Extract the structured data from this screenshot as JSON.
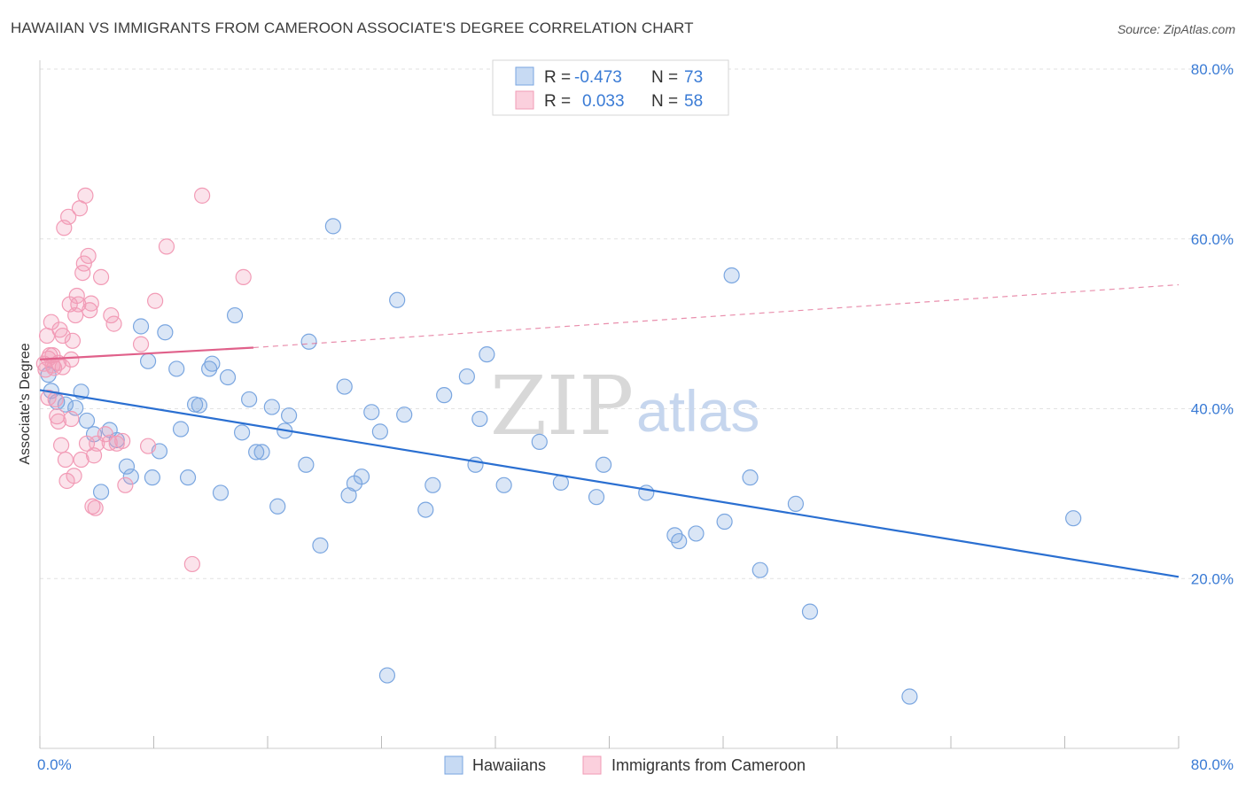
{
  "title": "HAWAIIAN VS IMMIGRANTS FROM CAMEROON ASSOCIATE'S DEGREE CORRELATION CHART",
  "source": "Source: ZipAtlas.com",
  "watermark": {
    "zip": "ZIP",
    "atlas": "atlas"
  },
  "legend_top": [
    {
      "r_label": "R =",
      "r_value": "-0.473",
      "n_label": "N =",
      "n_value": "73",
      "color": "#7aa6e0"
    },
    {
      "r_label": "R =",
      "r_value": "0.033",
      "n_label": "N =",
      "n_value": "58",
      "color": "#f29bb6"
    }
  ],
  "chart_data": {
    "type": "scatter",
    "title": "HAWAIIAN VS IMMIGRANTS FROM CAMEROON ASSOCIATE'S DEGREE CORRELATION CHART",
    "xlabel": "",
    "ylabel": "Associate's Degree",
    "xlim": [
      0,
      80
    ],
    "ylim": [
      0,
      80
    ],
    "x_tick_labels": [
      "0.0%",
      "80.0%"
    ],
    "y_tick_labels": [
      "20.0%",
      "40.0%",
      "60.0%",
      "80.0%"
    ],
    "y_ticks": [
      20,
      40,
      60,
      80
    ],
    "grid": true,
    "legend_placement": "top-center and bottom",
    "series": [
      {
        "name": "Hawaiians",
        "color": "#7aa6e0",
        "line_color": "#2a6fd1",
        "trend": {
          "x0": 0,
          "y0": 42.2,
          "x1": 80,
          "y1": 20.2
        },
        "points": [
          [
            0.6,
            44.0
          ],
          [
            0.8,
            42.1
          ],
          [
            1.2,
            40.8
          ],
          [
            1.8,
            40.5
          ],
          [
            2.5,
            40.1
          ],
          [
            2.9,
            42.0
          ],
          [
            3.3,
            38.6
          ],
          [
            3.8,
            37.0
          ],
          [
            4.3,
            30.2
          ],
          [
            4.9,
            37.5
          ],
          [
            5.4,
            36.3
          ],
          [
            6.1,
            33.2
          ],
          [
            6.4,
            32.0
          ],
          [
            7.1,
            49.7
          ],
          [
            7.6,
            45.6
          ],
          [
            7.9,
            31.9
          ],
          [
            8.4,
            35.0
          ],
          [
            8.8,
            49.0
          ],
          [
            9.6,
            44.7
          ],
          [
            9.9,
            37.6
          ],
          [
            10.4,
            31.9
          ],
          [
            10.9,
            40.5
          ],
          [
            11.2,
            40.4
          ],
          [
            11.9,
            44.7
          ],
          [
            12.1,
            45.3
          ],
          [
            12.7,
            30.1
          ],
          [
            13.2,
            43.7
          ],
          [
            13.7,
            51.0
          ],
          [
            14.2,
            37.2
          ],
          [
            14.7,
            41.1
          ],
          [
            15.2,
            34.9
          ],
          [
            15.6,
            34.9
          ],
          [
            16.3,
            40.2
          ],
          [
            16.7,
            28.5
          ],
          [
            17.2,
            37.4
          ],
          [
            17.5,
            39.2
          ],
          [
            18.7,
            33.4
          ],
          [
            18.9,
            47.9
          ],
          [
            19.7,
            23.9
          ],
          [
            20.6,
            61.5
          ],
          [
            21.4,
            42.6
          ],
          [
            21.7,
            29.8
          ],
          [
            22.1,
            31.2
          ],
          [
            22.6,
            32.0
          ],
          [
            23.3,
            39.6
          ],
          [
            23.9,
            37.3
          ],
          [
            24.4,
            8.6
          ],
          [
            25.1,
            52.8
          ],
          [
            25.6,
            39.3
          ],
          [
            27.1,
            28.1
          ],
          [
            27.6,
            31.0
          ],
          [
            28.4,
            41.6
          ],
          [
            30.0,
            43.8
          ],
          [
            30.6,
            33.4
          ],
          [
            30.9,
            38.8
          ],
          [
            31.4,
            46.4
          ],
          [
            32.6,
            31.0
          ],
          [
            35.1,
            36.1
          ],
          [
            36.6,
            31.3
          ],
          [
            39.1,
            29.6
          ],
          [
            39.6,
            33.4
          ],
          [
            42.6,
            30.1
          ],
          [
            44.6,
            25.1
          ],
          [
            44.9,
            24.4
          ],
          [
            46.1,
            25.3
          ],
          [
            48.1,
            26.7
          ],
          [
            48.6,
            55.7
          ],
          [
            49.9,
            31.9
          ],
          [
            50.6,
            21.0
          ],
          [
            53.1,
            28.8
          ],
          [
            54.1,
            16.1
          ],
          [
            61.1,
            6.1
          ],
          [
            72.6,
            27.1
          ]
        ]
      },
      {
        "name": "Immigrants from Cameroon",
        "color": "#f29bb6",
        "line_color": "#e0608a",
        "trend_solid": {
          "x0": 0,
          "y0": 45.8,
          "x1": 15,
          "y1": 47.2
        },
        "trend_dashed": {
          "x0": 15,
          "y0": 47.2,
          "x1": 80,
          "y1": 54.6
        },
        "points": [
          [
            0.3,
            45.3
          ],
          [
            0.4,
            44.6
          ],
          [
            0.5,
            48.6
          ],
          [
            0.6,
            45.9
          ],
          [
            0.7,
            46.3
          ],
          [
            0.8,
            50.2
          ],
          [
            0.9,
            45.1
          ],
          [
            1.0,
            44.8
          ],
          [
            1.1,
            41.1
          ],
          [
            1.2,
            39.1
          ],
          [
            1.3,
            38.5
          ],
          [
            1.4,
            49.3
          ],
          [
            1.5,
            35.7
          ],
          [
            1.6,
            48.6
          ],
          [
            1.7,
            61.3
          ],
          [
            1.8,
            34.0
          ],
          [
            1.9,
            31.5
          ],
          [
            2.0,
            62.6
          ],
          [
            2.1,
            52.3
          ],
          [
            2.2,
            45.8
          ],
          [
            2.3,
            48.0
          ],
          [
            2.4,
            32.1
          ],
          [
            2.5,
            51.0
          ],
          [
            2.6,
            53.3
          ],
          [
            2.7,
            52.3
          ],
          [
            2.8,
            63.6
          ],
          [
            2.9,
            34.0
          ],
          [
            3.0,
            56.0
          ],
          [
            3.1,
            57.1
          ],
          [
            3.2,
            65.1
          ],
          [
            3.3,
            35.9
          ],
          [
            3.4,
            58.0
          ],
          [
            3.5,
            51.6
          ],
          [
            3.6,
            52.4
          ],
          [
            3.7,
            28.5
          ],
          [
            3.8,
            34.5
          ],
          [
            3.9,
            28.3
          ],
          [
            4.0,
            35.9
          ],
          [
            4.3,
            55.5
          ],
          [
            4.6,
            37.0
          ],
          [
            4.9,
            36.0
          ],
          [
            5.0,
            51.0
          ],
          [
            5.2,
            50.0
          ],
          [
            5.4,
            35.9
          ],
          [
            5.8,
            36.2
          ],
          [
            6.0,
            31.0
          ],
          [
            7.1,
            47.6
          ],
          [
            7.6,
            35.6
          ],
          [
            8.1,
            52.7
          ],
          [
            8.9,
            59.1
          ],
          [
            10.7,
            21.7
          ],
          [
            11.4,
            65.1
          ],
          [
            14.3,
            55.5
          ],
          [
            0.6,
            41.3
          ],
          [
            0.9,
            46.3
          ],
          [
            1.3,
            45.4
          ],
          [
            1.6,
            44.9
          ],
          [
            2.2,
            38.8
          ]
        ]
      }
    ]
  },
  "bottom_legend": [
    {
      "label": "Hawaiians",
      "color": "#7aa6e0"
    },
    {
      "label": "Immigrants from Cameroon",
      "color": "#f29bb6"
    }
  ]
}
